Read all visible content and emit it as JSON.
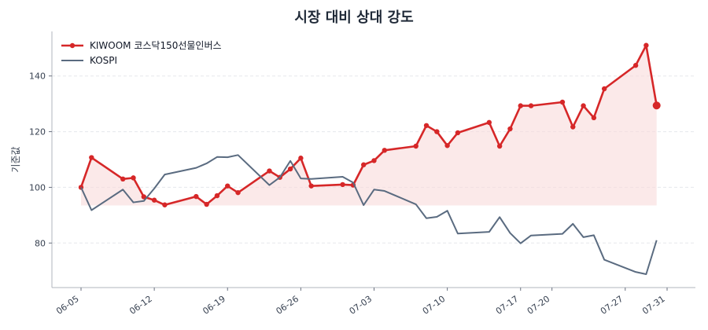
{
  "colors": {
    "inverse": "#d62728",
    "index": "#5a6b80",
    "fill": "#f8dada",
    "grid": "#e5e7eb"
  },
  "chart_data": {
    "type": "line",
    "title": "시장 대비 상대 강도",
    "xlabel": "",
    "ylabel": "기준값",
    "ylim": [
      64,
      156
    ],
    "y_ticks": [
      80,
      100,
      120,
      140
    ],
    "grid": true,
    "legend_position": "top-left",
    "x": [
      "06-05",
      "06-06",
      "06-07",
      "06-08",
      "06-09",
      "06-10",
      "06-11",
      "06-12",
      "06-13",
      "06-14",
      "06-15",
      "06-16",
      "06-17",
      "06-18",
      "06-19",
      "06-20",
      "06-21",
      "06-22",
      "06-23",
      "06-24",
      "06-25",
      "06-26",
      "06-27",
      "06-28",
      "06-29",
      "06-30",
      "07-01",
      "07-02",
      "07-03",
      "07-04",
      "07-05",
      "07-06",
      "07-07",
      "07-08",
      "07-09",
      "07-10",
      "07-11",
      "07-12",
      "07-13",
      "07-14",
      "07-15",
      "07-16",
      "07-17",
      "07-18",
      "07-19",
      "07-20",
      "07-21",
      "07-22",
      "07-23",
      "07-24",
      "07-25",
      "07-26",
      "07-27",
      "07-28",
      "07-29",
      "07-30",
      "07-31"
    ],
    "x_ticks": [
      "06-05",
      "06-12",
      "06-19",
      "06-26",
      "07-03",
      "07-10",
      "07-17",
      "07-20",
      "07-27",
      "07-31"
    ],
    "baseline_fill_value": 93.5,
    "series": [
      {
        "name": "KIWOOM 코스닥150선물인버스",
        "marker": true,
        "points": [
          [
            "06-05",
            100.0
          ],
          [
            "06-06",
            110.7
          ],
          [
            "06-09",
            103.0
          ],
          [
            "06-10",
            103.4
          ],
          [
            "06-11",
            96.6
          ],
          [
            "06-12",
            95.4
          ],
          [
            "06-13",
            93.7
          ],
          [
            "06-16",
            96.7
          ],
          [
            "06-17",
            93.9
          ],
          [
            "06-18",
            97.0
          ],
          [
            "06-19",
            100.5
          ],
          [
            "06-20",
            98.1
          ],
          [
            "06-23",
            105.9
          ],
          [
            "06-24",
            103.6
          ],
          [
            "06-25",
            106.6
          ],
          [
            "06-26",
            110.5
          ],
          [
            "06-27",
            100.5
          ],
          [
            "06-30",
            101.0
          ],
          [
            "07-01",
            100.8
          ],
          [
            "07-02",
            108.1
          ],
          [
            "07-03",
            109.6
          ],
          [
            "07-04",
            113.3
          ],
          [
            "07-07",
            114.8
          ],
          [
            "07-08",
            122.2
          ],
          [
            "07-09",
            120.0
          ],
          [
            "07-10",
            115.0
          ],
          [
            "07-11",
            119.6
          ],
          [
            "07-14",
            123.3
          ],
          [
            "07-15",
            114.8
          ],
          [
            "07-16",
            121.0
          ],
          [
            "07-17",
            129.3
          ],
          [
            "07-18",
            129.3
          ],
          [
            "07-21",
            130.6
          ],
          [
            "07-22",
            121.7
          ],
          [
            "07-23",
            129.3
          ],
          [
            "07-24",
            125.0
          ],
          [
            "07-25",
            135.4
          ],
          [
            "07-28",
            143.8
          ],
          [
            "07-29",
            151.0
          ],
          [
            "07-30",
            129.4
          ]
        ]
      },
      {
        "name": "KOSPI",
        "marker": false,
        "points": [
          [
            "06-05",
            100.0
          ],
          [
            "06-06",
            91.8
          ],
          [
            "06-09",
            99.2
          ],
          [
            "06-10",
            94.6
          ],
          [
            "06-11",
            95.1
          ],
          [
            "06-12",
            99.6
          ],
          [
            "06-13",
            104.6
          ],
          [
            "06-16",
            107.0
          ],
          [
            "06-17",
            108.6
          ],
          [
            "06-18",
            110.9
          ],
          [
            "06-19",
            110.8
          ],
          [
            "06-20",
            111.6
          ],
          [
            "06-23",
            100.8
          ],
          [
            "06-24",
            103.6
          ],
          [
            "06-25",
            109.5
          ],
          [
            "06-26",
            103.2
          ],
          [
            "06-27",
            103.0
          ],
          [
            "06-30",
            103.8
          ],
          [
            "07-01",
            101.7
          ],
          [
            "07-02",
            93.6
          ],
          [
            "07-03",
            99.2
          ],
          [
            "07-04",
            98.7
          ],
          [
            "07-07",
            93.9
          ],
          [
            "07-08",
            88.9
          ],
          [
            "07-09",
            89.4
          ],
          [
            "07-10",
            91.6
          ],
          [
            "07-11",
            83.4
          ],
          [
            "07-14",
            84.0
          ],
          [
            "07-15",
            89.3
          ],
          [
            "07-16",
            83.6
          ],
          [
            "07-17",
            79.9
          ],
          [
            "07-18",
            82.7
          ],
          [
            "07-21",
            83.3
          ],
          [
            "07-22",
            86.9
          ],
          [
            "07-23",
            82.1
          ],
          [
            "07-24",
            82.8
          ],
          [
            "07-25",
            74.0
          ],
          [
            "07-28",
            69.6
          ],
          [
            "07-29",
            68.8
          ],
          [
            "07-30",
            81.0
          ]
        ]
      }
    ]
  }
}
